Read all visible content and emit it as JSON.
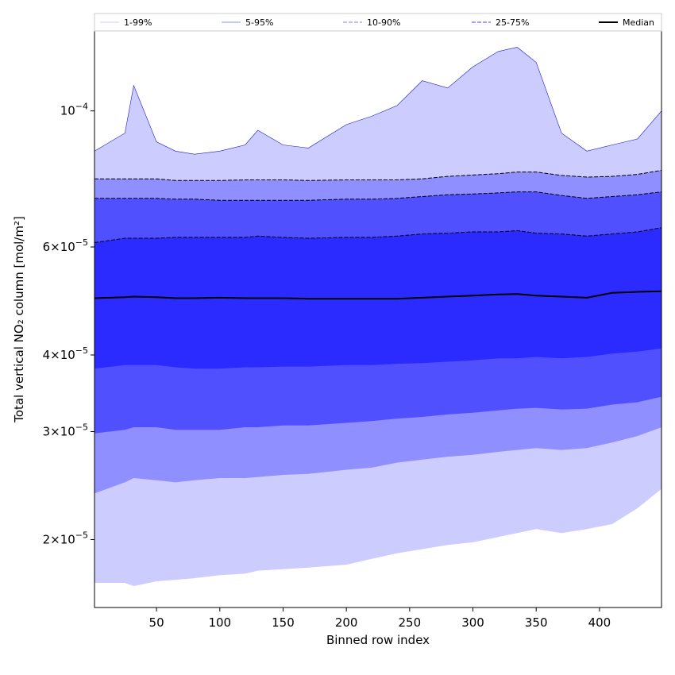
{
  "chart_data": {
    "type": "area",
    "title": "",
    "xlabel": "Binned row index",
    "ylabel": "Total vertical NO₂ column [mol/m²]",
    "yscale": "log",
    "xlim": [
      1,
      449
    ],
    "ylim": [
      1.55e-05,
      0.000135
    ],
    "xticks": [
      50,
      100,
      150,
      200,
      250,
      300,
      350,
      400
    ],
    "yticks": [
      {
        "value": 2e-05,
        "mantissa": "2",
        "exp": "−5"
      },
      {
        "value": 3e-05,
        "mantissa": "3",
        "exp": "−5"
      },
      {
        "value": 4e-05,
        "mantissa": "4",
        "exp": "−5"
      },
      {
        "value": 6e-05,
        "mantissa": "6",
        "exp": "−5"
      },
      {
        "value": 0.0001,
        "mantissa": "",
        "exp": "−4"
      }
    ],
    "legend_position": "top, spanning axes",
    "legend": [
      {
        "label": "1-99%",
        "color": "#ccccff",
        "style": "solid"
      },
      {
        "label": "5-95%",
        "color": "#8f8fff",
        "style": "solid"
      },
      {
        "label": "10-90%",
        "color": "#8080ff",
        "style": "dashed"
      },
      {
        "label": "25-75%",
        "color": "#4040ff",
        "style": "dashed"
      },
      {
        "label": "Median",
        "color": "#000000",
        "style": "solid"
      }
    ],
    "x": [
      1,
      25,
      32,
      50,
      65,
      80,
      100,
      120,
      130,
      150,
      170,
      200,
      220,
      240,
      260,
      280,
      300,
      320,
      335,
      350,
      370,
      390,
      410,
      430,
      449
    ],
    "bands": [
      {
        "name": "1-99%",
        "color": "#ccccff",
        "lower": [
          1.7e-05,
          1.7e-05,
          1.68e-05,
          1.71e-05,
          1.72e-05,
          1.73e-05,
          1.75e-05,
          1.76e-05,
          1.78e-05,
          1.79e-05,
          1.8e-05,
          1.82e-05,
          1.86e-05,
          1.9e-05,
          1.93e-05,
          1.96e-05,
          1.98e-05,
          2.02e-05,
          2.05e-05,
          2.08e-05,
          2.05e-05,
          2.08e-05,
          2.12e-05,
          2.25e-05,
          2.42e-05
        ],
        "upper": [
          8.6e-05,
          9.2e-05,
          0.00011,
          8.9e-05,
          8.6e-05,
          8.5e-05,
          8.6e-05,
          8.8e-05,
          9.3e-05,
          8.8e-05,
          8.7e-05,
          9.5e-05,
          9.8e-05,
          0.000102,
          0.000112,
          0.000109,
          0.000118,
          0.000125,
          0.000127,
          0.00012,
          9.2e-05,
          8.6e-05,
          8.8e-05,
          9e-05,
          0.0001
        ]
      },
      {
        "name": "5-95%",
        "color": "#8f8fff",
        "lower": [
          2.38e-05,
          2.48e-05,
          2.52e-05,
          2.5e-05,
          2.48e-05,
          2.5e-05,
          2.52e-05,
          2.52e-05,
          2.53e-05,
          2.55e-05,
          2.56e-05,
          2.6e-05,
          2.62e-05,
          2.67e-05,
          2.7e-05,
          2.73e-05,
          2.75e-05,
          2.78e-05,
          2.8e-05,
          2.82e-05,
          2.8e-05,
          2.82e-05,
          2.88e-05,
          2.95e-05,
          3.05e-05
        ],
        "upper": [
          7.75e-05,
          7.75e-05,
          7.75e-05,
          7.75e-05,
          7.7e-05,
          7.7e-05,
          7.7e-05,
          7.72e-05,
          7.72e-05,
          7.72e-05,
          7.7e-05,
          7.72e-05,
          7.72e-05,
          7.72e-05,
          7.75e-05,
          7.82e-05,
          7.86e-05,
          7.9e-05,
          7.95e-05,
          7.95e-05,
          7.85e-05,
          7.8e-05,
          7.82e-05,
          7.88e-05,
          8e-05
        ]
      },
      {
        "name": "10-90%",
        "color": "#5050ff",
        "lower": [
          2.98e-05,
          3.02e-05,
          3.05e-05,
          3.05e-05,
          3.02e-05,
          3.02e-05,
          3.02e-05,
          3.05e-05,
          3.05e-05,
          3.07e-05,
          3.07e-05,
          3.1e-05,
          3.12e-05,
          3.15e-05,
          3.17e-05,
          3.2e-05,
          3.22e-05,
          3.25e-05,
          3.27e-05,
          3.28e-05,
          3.26e-05,
          3.27e-05,
          3.32e-05,
          3.35e-05,
          3.42e-05
        ],
        "upper": [
          7.2e-05,
          7.2e-05,
          7.2e-05,
          7.2e-05,
          7.18e-05,
          7.18e-05,
          7.15e-05,
          7.15e-05,
          7.15e-05,
          7.15e-05,
          7.15e-05,
          7.18e-05,
          7.18e-05,
          7.2e-05,
          7.25e-05,
          7.3e-05,
          7.32e-05,
          7.35e-05,
          7.38e-05,
          7.38e-05,
          7.28e-05,
          7.2e-05,
          7.25e-05,
          7.3e-05,
          7.38e-05
        ]
      },
      {
        "name": "25-75%",
        "color": "#2b2bff",
        "lower": [
          3.8e-05,
          3.85e-05,
          3.85e-05,
          3.85e-05,
          3.82e-05,
          3.8e-05,
          3.8e-05,
          3.82e-05,
          3.82e-05,
          3.83e-05,
          3.83e-05,
          3.85e-05,
          3.85e-05,
          3.87e-05,
          3.88e-05,
          3.9e-05,
          3.92e-05,
          3.95e-05,
          3.95e-05,
          3.97e-05,
          3.95e-05,
          3.97e-05,
          4.02e-05,
          4.05e-05,
          4.1e-05
        ],
        "upper": [
          6.1e-05,
          6.2e-05,
          6.2e-05,
          6.2e-05,
          6.22e-05,
          6.22e-05,
          6.22e-05,
          6.22e-05,
          6.25e-05,
          6.22e-05,
          6.2e-05,
          6.22e-05,
          6.22e-05,
          6.25e-05,
          6.3e-05,
          6.32e-05,
          6.35e-05,
          6.35e-05,
          6.38e-05,
          6.32e-05,
          6.3e-05,
          6.25e-05,
          6.3e-05,
          6.35e-05,
          6.45e-05
        ]
      }
    ],
    "median": [
      4.95e-05,
      4.97e-05,
      4.98e-05,
      4.97e-05,
      4.95e-05,
      4.95e-05,
      4.96e-05,
      4.95e-05,
      4.95e-05,
      4.95e-05,
      4.94e-05,
      4.94e-05,
      4.94e-05,
      4.94e-05,
      4.96e-05,
      4.98e-05,
      5e-05,
      5.02e-05,
      5.03e-05,
      5e-05,
      4.98e-05,
      4.96e-05,
      5.05e-05,
      5.07e-05,
      5.08e-05
    ]
  }
}
